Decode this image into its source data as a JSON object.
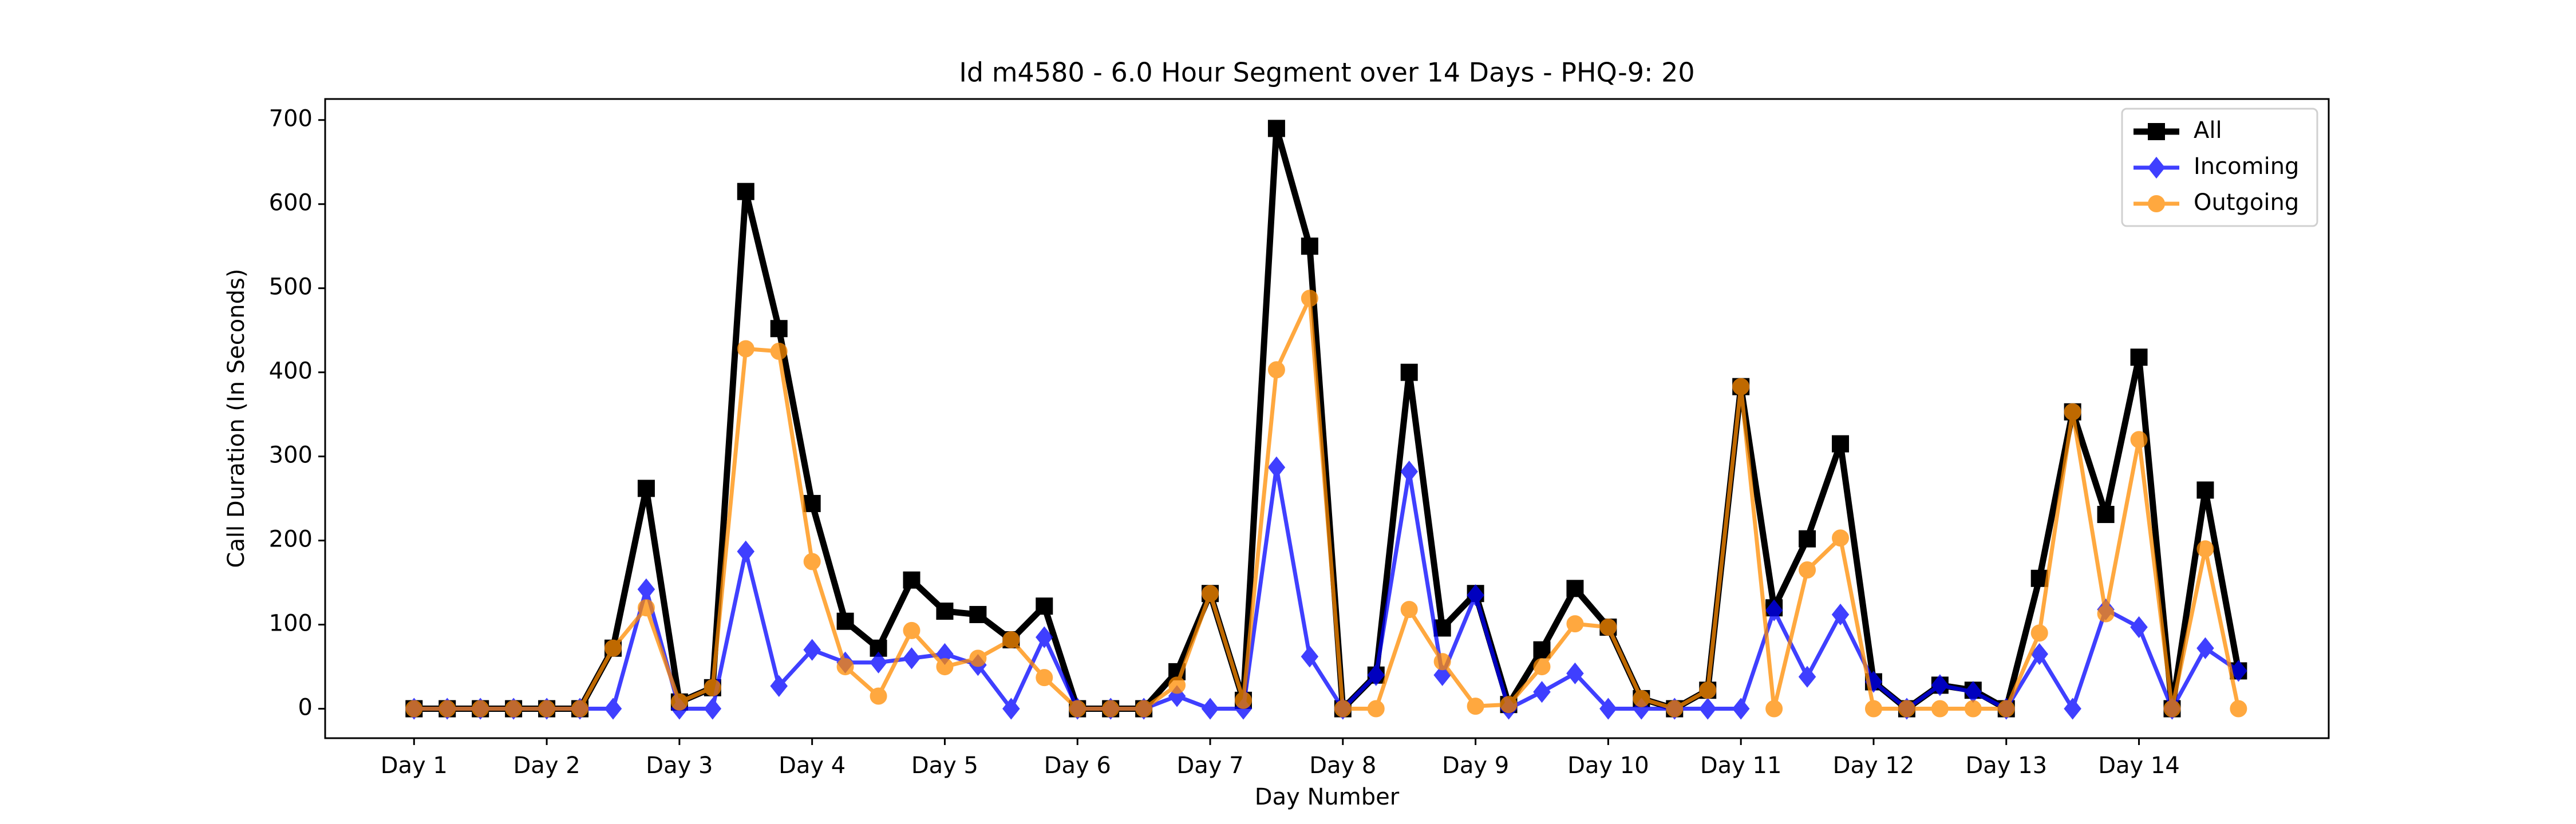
{
  "chart_data": {
    "type": "line",
    "title": "Id m4580 - 6.0 Hour Segment over 14 Days - PHQ-9: 20",
    "x_label": "Day Number",
    "y_label": "Call Duration (In Seconds)",
    "x": [
      1,
      1.25,
      1.5,
      1.75,
      2,
      2.25,
      2.5,
      2.75,
      3,
      3.25,
      3.5,
      3.75,
      4,
      4.25,
      4.5,
      4.75,
      5,
      5.25,
      5.5,
      5.75,
      6,
      6.25,
      6.5,
      6.75,
      7,
      7.25,
      7.5,
      7.75,
      8,
      8.25,
      8.5,
      8.75,
      9,
      9.25,
      9.5,
      9.75,
      10,
      10.25,
      10.5,
      10.75,
      11,
      11.25,
      11.5,
      11.75,
      12,
      12.25,
      12.5,
      12.75,
      13,
      13.25,
      13.5,
      13.75,
      14,
      14.25,
      14.5,
      14.75
    ],
    "series": [
      {
        "name": "All",
        "color": "#000000",
        "marker": "square",
        "values": [
          0,
          0,
          0,
          0,
          0,
          0,
          72,
          262,
          8,
          25,
          615,
          452,
          244,
          104,
          72,
          153,
          116,
          112,
          82,
          122,
          0,
          0,
          0,
          44,
          137,
          10,
          690,
          550,
          0,
          40,
          400,
          96,
          137,
          5,
          70,
          143,
          97,
          12,
          0,
          22,
          383,
          120,
          202,
          315,
          32,
          0,
          28,
          22,
          0,
          155,
          353,
          231,
          418,
          0,
          260,
          45
        ]
      },
      {
        "name": "Incoming",
        "color": "#0000ff",
        "marker": "diamond",
        "values": [
          0,
          0,
          0,
          0,
          0,
          0,
          0,
          142,
          0,
          0,
          187,
          27,
          70,
          55,
          55,
          60,
          65,
          52,
          0,
          85,
          0,
          0,
          0,
          15,
          0,
          0,
          287,
          62,
          0,
          40,
          282,
          40,
          135,
          0,
          20,
          42,
          0,
          0,
          0,
          0,
          0,
          117,
          38,
          112,
          32,
          0,
          28,
          20,
          0,
          65,
          0,
          118,
          97,
          0,
          72,
          45
        ]
      },
      {
        "name": "Outgoing",
        "color": "#ff8c00",
        "marker": "circle",
        "values": [
          0,
          0,
          0,
          0,
          0,
          0,
          72,
          120,
          8,
          25,
          428,
          425,
          175,
          50,
          15,
          93,
          50,
          60,
          82,
          37,
          0,
          0,
          0,
          28,
          137,
          10,
          403,
          488,
          0,
          0,
          118,
          56,
          3,
          5,
          50,
          101,
          97,
          12,
          0,
          22,
          383,
          0,
          165,
          203,
          0,
          0,
          0,
          0,
          0,
          90,
          353,
          113,
          320,
          0,
          190,
          0
        ]
      }
    ],
    "xlim": [
      0.33,
      15.43
    ],
    "xticks": [
      {
        "value": 1,
        "label": "Day 1"
      },
      {
        "value": 2,
        "label": "Day 2"
      },
      {
        "value": 3,
        "label": "Day 3"
      },
      {
        "value": 4,
        "label": "Day 4"
      },
      {
        "value": 5,
        "label": "Day 5"
      },
      {
        "value": 6,
        "label": "Day 6"
      },
      {
        "value": 7,
        "label": "Day 7"
      },
      {
        "value": 8,
        "label": "Day 8"
      },
      {
        "value": 9,
        "label": "Day 9"
      },
      {
        "value": 10,
        "label": "Day 10"
      },
      {
        "value": 11,
        "label": "Day 11"
      },
      {
        "value": 12,
        "label": "Day 12"
      },
      {
        "value": 13,
        "label": "Day 13"
      },
      {
        "value": 14,
        "label": "Day 14"
      }
    ],
    "ylim": [
      -35,
      725
    ],
    "yticks": [
      0,
      100,
      200,
      300,
      400,
      500,
      600,
      700
    ],
    "legend": "upper right",
    "grid": false
  }
}
